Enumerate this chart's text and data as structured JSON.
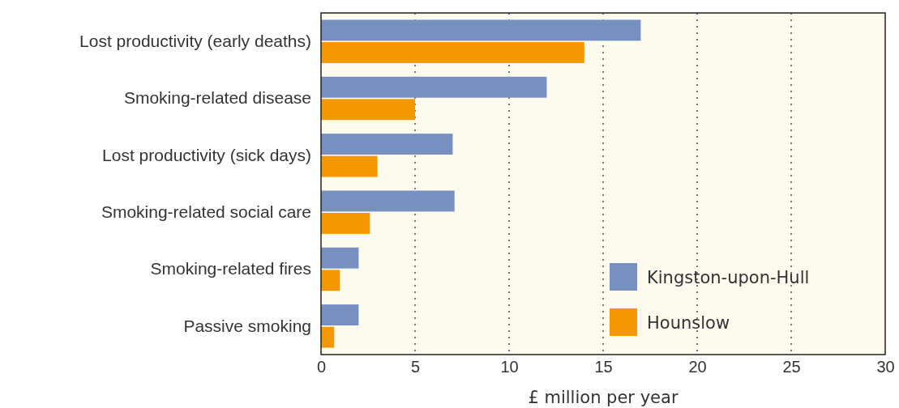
{
  "chart_data": {
    "type": "bar",
    "orientation": "horizontal",
    "xlabel": "£ million per year",
    "categories": [
      "Lost productivity (early deaths)",
      "Smoking-related disease",
      "Lost productivity (sick days)",
      "Smoking-related social care",
      "Smoking-related fires",
      "Passive smoking"
    ],
    "series": [
      {
        "name": "Kingston-upon-Hull",
        "color": "#7890c0",
        "values": [
          17,
          12,
          7,
          7.1,
          2,
          2
        ]
      },
      {
        "name": "Hounslow",
        "color": "#f39800",
        "values": [
          14,
          5,
          3,
          2.6,
          1,
          0.7
        ]
      }
    ],
    "xlim": [
      0,
      30
    ],
    "xticks": [
      0,
      5,
      10,
      15,
      20,
      25,
      30
    ],
    "grid": "x",
    "legend": "bottom right"
  }
}
